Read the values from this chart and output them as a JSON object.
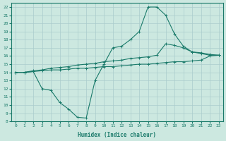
{
  "xlabel": "Humidex (Indice chaleur)",
  "bg_color": "#cce8e0",
  "grid_color": "#aacccc",
  "line_color": "#1a7a6a",
  "xlim": [
    -0.5,
    23.5
  ],
  "ylim": [
    8,
    22.5
  ],
  "xticks": [
    0,
    1,
    2,
    3,
    4,
    5,
    6,
    7,
    8,
    9,
    10,
    11,
    12,
    13,
    14,
    15,
    16,
    17,
    18,
    19,
    20,
    21,
    22,
    23
  ],
  "yticks": [
    8,
    9,
    10,
    11,
    12,
    13,
    14,
    15,
    16,
    17,
    18,
    19,
    20,
    21,
    22
  ],
  "curve1_x": [
    0,
    1,
    2,
    3,
    4,
    5,
    6,
    7,
    8,
    9,
    10,
    11,
    12,
    13,
    14,
    15,
    16,
    17,
    18,
    19,
    20,
    21,
    22,
    23
  ],
  "curve1_y": [
    14.0,
    14.0,
    14.1,
    14.2,
    14.3,
    14.3,
    14.4,
    14.5,
    14.5,
    14.6,
    14.7,
    14.7,
    14.8,
    14.9,
    15.0,
    15.0,
    15.1,
    15.2,
    15.3,
    15.3,
    15.4,
    15.5,
    16.0,
    16.1
  ],
  "curve2_x": [
    0,
    1,
    2,
    3,
    4,
    5,
    6,
    7,
    8,
    9,
    10,
    11,
    12,
    13,
    14,
    15,
    16,
    17,
    18,
    19,
    20,
    21,
    22,
    23
  ],
  "curve2_y": [
    14.0,
    14.0,
    14.2,
    14.3,
    14.5,
    14.6,
    14.7,
    14.9,
    15.0,
    15.1,
    15.3,
    15.4,
    15.5,
    15.7,
    15.8,
    15.9,
    16.1,
    17.5,
    17.3,
    17.0,
    16.5,
    16.4,
    16.2,
    16.1
  ],
  "curve3_x": [
    0,
    1,
    2,
    3,
    4,
    5,
    6,
    7,
    8,
    9,
    10,
    11,
    12,
    13,
    14,
    15,
    16,
    17,
    18,
    19,
    20,
    21,
    22,
    23
  ],
  "curve3_y": [
    14.0,
    14.0,
    14.1,
    12.0,
    11.8,
    10.3,
    9.5,
    8.5,
    8.4,
    13.0,
    15.0,
    17.0,
    17.2,
    18.0,
    19.0,
    22.0,
    22.0,
    21.0,
    18.7,
    17.2,
    16.5,
    16.3,
    16.1,
    16.1
  ]
}
